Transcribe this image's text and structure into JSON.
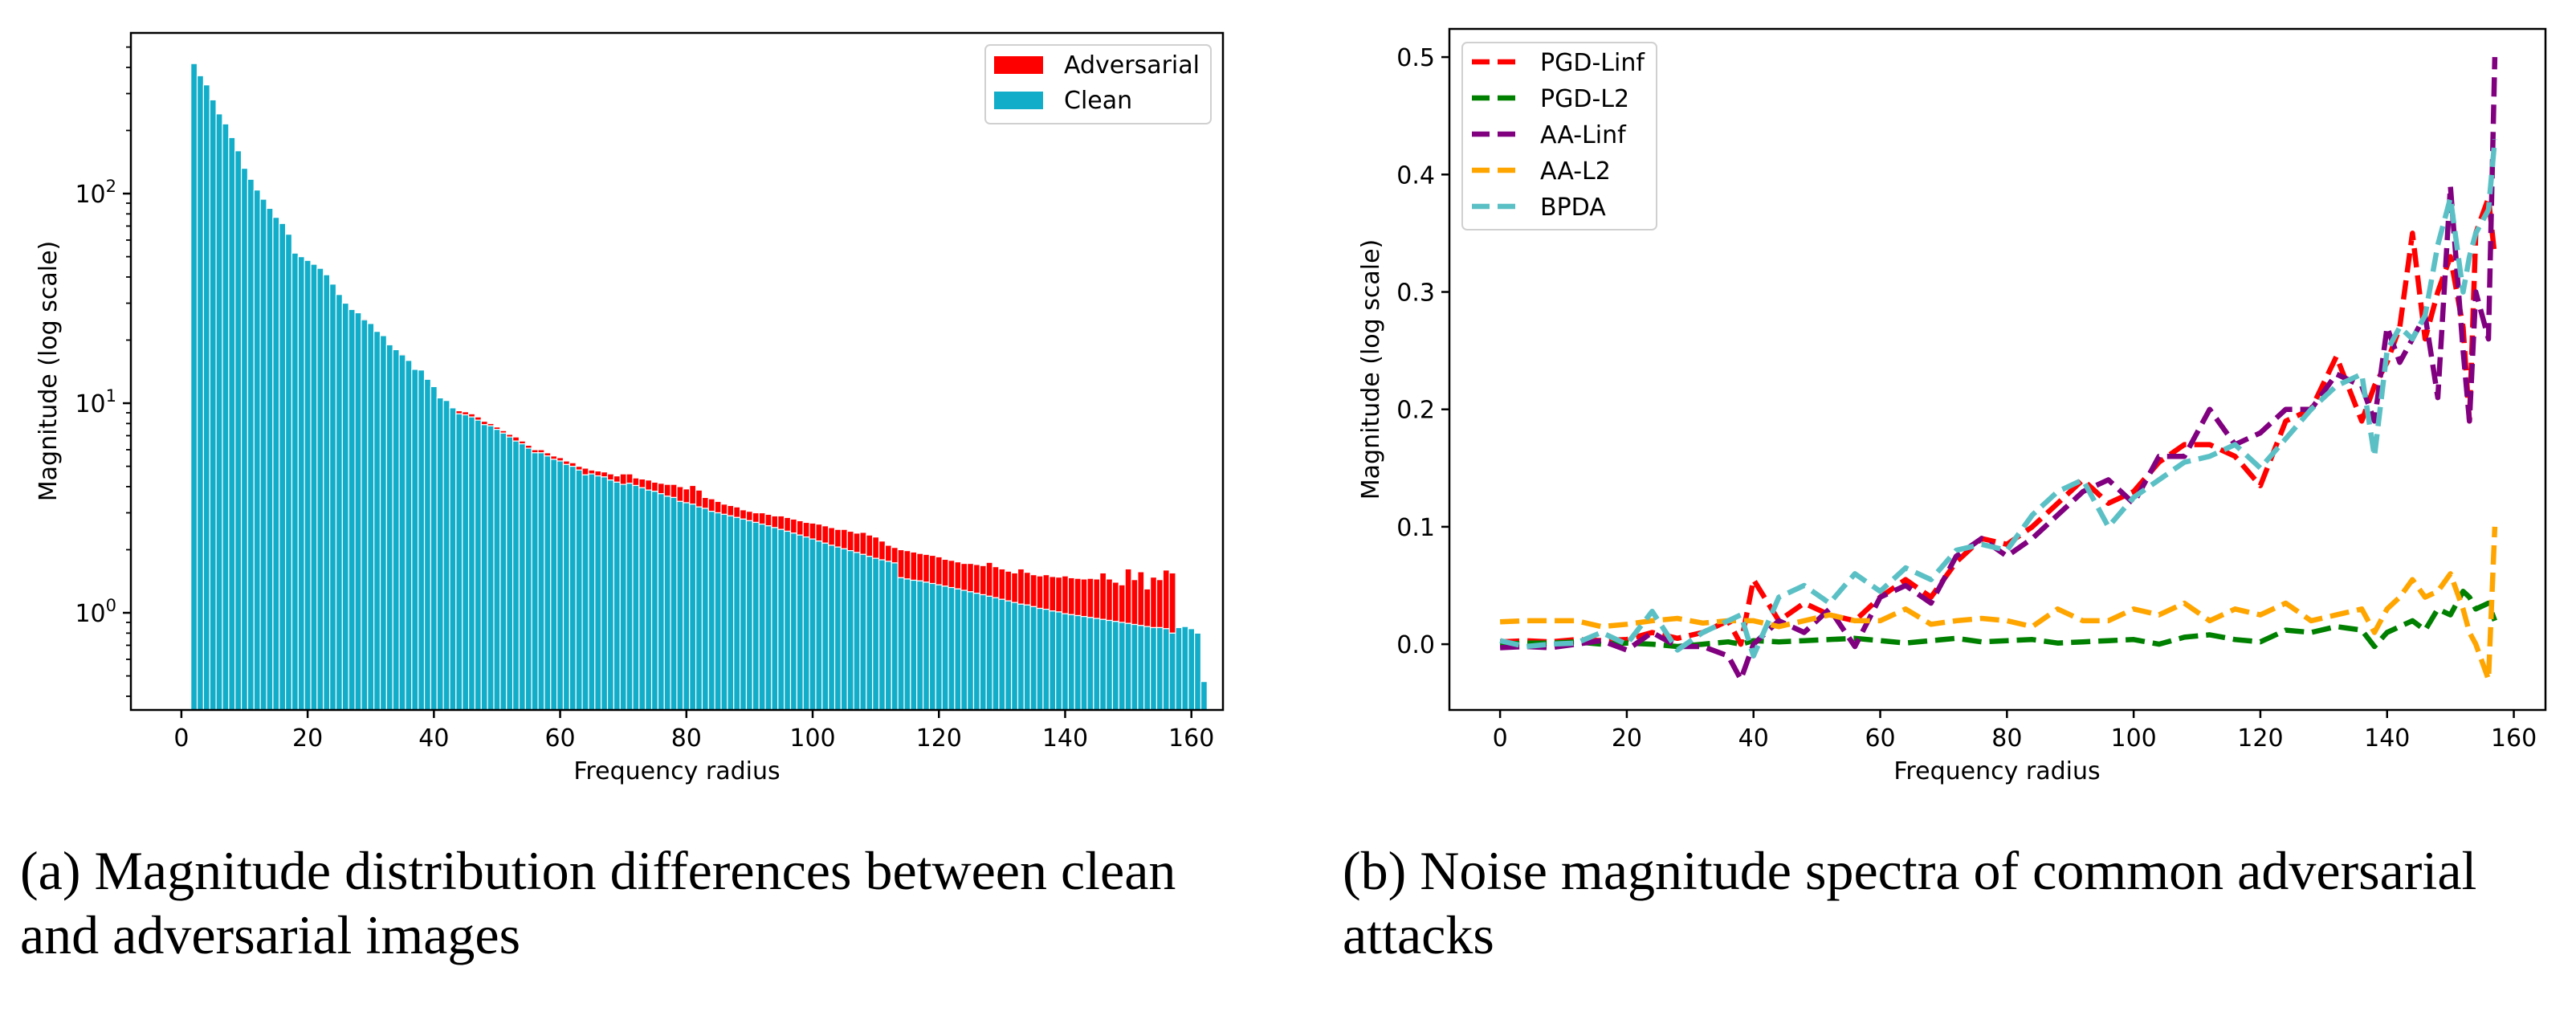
{
  "chart_data": [
    {
      "type": "bar",
      "stacked": true,
      "yscale": "log",
      "title": "",
      "xlabel": "Frequency radius",
      "ylabel": "Magnitude (log scale)",
      "xlim": [
        -8,
        165
      ],
      "ylim": [
        0.344,
        584
      ],
      "xticks": [
        0,
        20,
        40,
        60,
        80,
        100,
        120,
        140,
        160
      ],
      "yticks": [
        {
          "value": 1,
          "base": "10",
          "exp": "0"
        },
        {
          "value": 10,
          "base": "10",
          "exp": "1"
        },
        {
          "value": 100,
          "base": "10",
          "exp": "2"
        }
      ],
      "legend": {
        "placement": "top-right",
        "entries": [
          "Adversarial",
          "Clean"
        ]
      },
      "colors": {
        "Adversarial": "#ff0000",
        "Clean": "#12aec9"
      },
      "x_start": 2,
      "series": [
        {
          "name": "Clean",
          "values": [
            417,
            365,
            330,
            280,
            240,
            215,
            185,
            160,
            132,
            117,
            104,
            94,
            85,
            77,
            72,
            64,
            52,
            50,
            48,
            46,
            44,
            41,
            37,
            33,
            30,
            28,
            27,
            25,
            24,
            22,
            21,
            19,
            18,
            17,
            16,
            14.5,
            14.4,
            13,
            12,
            10.6,
            10.3,
            9.5,
            8.9,
            8.8,
            8.6,
            8.3,
            7.9,
            7.8,
            7.5,
            7.2,
            6.9,
            6.6,
            6.4,
            6.1,
            5.8,
            5.8,
            5.6,
            5.4,
            5.3,
            5.1,
            5.0,
            4.8,
            4.55,
            4.6,
            4.5,
            4.45,
            4.3,
            4.2,
            4.1,
            4.15,
            4.05,
            3.95,
            3.85,
            3.8,
            3.7,
            3.6,
            3.55,
            3.4,
            3.35,
            3.3,
            3.2,
            3.15,
            3.05,
            3.0,
            2.95,
            2.9,
            2.85,
            2.8,
            2.75,
            2.7,
            2.65,
            2.6,
            2.55,
            2.5,
            2.45,
            2.4,
            2.35,
            2.3,
            2.25,
            2.2,
            2.15,
            2.1,
            2.06,
            2.02,
            1.98,
            1.94,
            1.9,
            1.86,
            1.82,
            1.79,
            1.76,
            1.73,
            1.47,
            1.45,
            1.43,
            1.42,
            1.4,
            1.38,
            1.36,
            1.34,
            1.32,
            1.3,
            1.28,
            1.26,
            1.24,
            1.22,
            1.2,
            1.18,
            1.16,
            1.14,
            1.12,
            1.1,
            1.09,
            1.07,
            1.05,
            1.04,
            1.02,
            1.01,
            0.99,
            0.98,
            0.97,
            0.96,
            0.95,
            0.94,
            0.93,
            0.92,
            0.91,
            0.9,
            0.89,
            0.88,
            0.87,
            0.86,
            0.85,
            0.85,
            0.84,
            0.8,
            0.85,
            0.86,
            0.84,
            0.8,
            0.47
          ],
          "note": "estimated"
        },
        {
          "name": "Adversarial",
          "values": [
            417,
            365,
            330,
            280,
            240,
            215,
            185,
            160,
            132,
            117,
            104,
            94,
            85,
            77,
            72,
            64,
            52,
            50,
            48,
            46,
            44,
            41,
            37,
            33,
            30,
            28,
            27,
            25.3,
            24,
            22,
            21,
            19,
            18,
            17.2,
            16,
            14.5,
            14.4,
            13,
            12,
            10.7,
            10.4,
            9.6,
            9.2,
            9.1,
            8.9,
            8.6,
            8.2,
            8.0,
            7.7,
            7.4,
            7.1,
            6.9,
            6.6,
            6.3,
            6.0,
            6.0,
            5.8,
            5.6,
            5.5,
            5.3,
            5.2,
            5.0,
            4.9,
            4.8,
            4.75,
            4.7,
            4.6,
            4.5,
            4.6,
            4.6,
            4.4,
            4.35,
            4.3,
            4.2,
            4.15,
            4.1,
            4.1,
            4.0,
            3.9,
            4.05,
            3.85,
            3.55,
            3.5,
            3.4,
            3.3,
            3.25,
            3.2,
            3.1,
            3.05,
            3.0,
            3.0,
            2.95,
            2.9,
            2.9,
            2.85,
            2.8,
            2.75,
            2.7,
            2.68,
            2.65,
            2.6,
            2.55,
            2.5,
            2.5,
            2.45,
            2.4,
            2.42,
            2.35,
            2.3,
            2.2,
            2.1,
            2.05,
            2.0,
            1.98,
            1.95,
            1.92,
            1.9,
            1.88,
            1.85,
            1.8,
            1.78,
            1.75,
            1.72,
            1.72,
            1.7,
            1.68,
            1.74,
            1.66,
            1.62,
            1.58,
            1.55,
            1.62,
            1.56,
            1.52,
            1.5,
            1.52,
            1.49,
            1.48,
            1.5,
            1.47,
            1.46,
            1.45,
            1.46,
            1.45,
            1.55,
            1.45,
            1.4,
            1.36,
            1.62,
            1.44,
            1.57,
            1.3,
            1.48,
            1.44,
            1.6,
            1.55
          ],
          "note": "total stack height (clean + adversarial)"
        }
      ]
    },
    {
      "type": "line",
      "xlabel": "Frequency radius",
      "ylabel": "Magnitude (log scale)",
      "xlim": [
        -8,
        165
      ],
      "ylim": [
        -0.056,
        0.524
      ],
      "xticks": [
        0,
        20,
        40,
        60,
        80,
        100,
        120,
        140,
        160
      ],
      "yticks": [
        "0.0",
        "0.1",
        "0.2",
        "0.3",
        "0.4",
        "0.5"
      ],
      "legend": {
        "placement": "top-left"
      },
      "x": [
        0,
        4,
        8,
        12,
        16,
        20,
        24,
        28,
        32,
        36,
        38,
        40,
        44,
        48,
        52,
        56,
        60,
        64,
        68,
        72,
        76,
        80,
        84,
        88,
        92,
        96,
        100,
        104,
        108,
        112,
        116,
        120,
        124,
        128,
        132,
        136,
        138,
        140,
        142,
        144,
        146,
        148,
        150,
        152,
        153,
        154,
        156,
        157
      ],
      "series": [
        {
          "name": "PGD-Linf",
          "color": "#ff0000",
          "values": [
            0.002,
            0.003,
            0.002,
            0.004,
            0.003,
            0.004,
            0.01,
            0.005,
            0.01,
            0.02,
            0.0,
            0.055,
            0.02,
            0.035,
            0.025,
            0.02,
            0.04,
            0.055,
            0.04,
            0.07,
            0.09,
            0.085,
            0.1,
            0.12,
            0.14,
            0.12,
            0.13,
            0.155,
            0.17,
            0.17,
            0.16,
            0.135,
            0.19,
            0.2,
            0.245,
            0.19,
            0.22,
            0.24,
            0.27,
            0.35,
            0.26,
            0.3,
            0.33,
            0.27,
            0.19,
            0.35,
            0.38,
            0.33
          ]
        },
        {
          "name": "PGD-L2",
          "color": "#008000",
          "values": [
            0.0,
            0.001,
            0.001,
            0.002,
            0.0,
            0.001,
            0.0,
            -0.002,
            0.0,
            0.002,
            0.0,
            0.003,
            0.002,
            0.003,
            0.004,
            0.005,
            0.003,
            0.001,
            0.003,
            0.005,
            0.002,
            0.003,
            0.004,
            0.001,
            0.002,
            0.003,
            0.004,
            0.0,
            0.006,
            0.008,
            0.004,
            0.002,
            0.012,
            0.01,
            0.015,
            0.012,
            -0.002,
            0.01,
            0.015,
            0.02,
            0.012,
            0.03,
            0.025,
            0.045,
            0.04,
            0.03,
            0.035,
            0.02
          ]
        },
        {
          "name": "AA-Linf",
          "color": "#800080",
          "values": [
            -0.003,
            -0.002,
            -0.003,
            0.0,
            0.003,
            -0.005,
            0.01,
            -0.002,
            -0.002,
            -0.01,
            -0.03,
            0.0,
            0.02,
            0.01,
            0.03,
            -0.002,
            0.04,
            0.05,
            0.035,
            0.075,
            0.09,
            0.075,
            0.09,
            0.11,
            0.13,
            0.14,
            0.12,
            0.16,
            0.16,
            0.2,
            0.17,
            0.18,
            0.2,
            0.2,
            0.23,
            0.22,
            0.19,
            0.27,
            0.24,
            0.26,
            0.28,
            0.21,
            0.39,
            0.25,
            0.19,
            0.3,
            0.26,
            0.5
          ]
        },
        {
          "name": "AA-L2",
          "color": "#ffa500",
          "values": [
            0.019,
            0.02,
            0.02,
            0.02,
            0.015,
            0.017,
            0.02,
            0.022,
            0.018,
            0.02,
            0.02,
            0.02,
            0.015,
            0.02,
            0.025,
            0.02,
            0.02,
            0.03,
            0.017,
            0.02,
            0.022,
            0.02,
            0.015,
            0.03,
            0.02,
            0.02,
            0.03,
            0.025,
            0.035,
            0.02,
            0.03,
            0.025,
            0.035,
            0.02,
            0.025,
            0.03,
            0.01,
            0.03,
            0.04,
            0.055,
            0.04,
            0.045,
            0.06,
            0.03,
            0.01,
            0.0,
            -0.03,
            0.1
          ]
        },
        {
          "name": "BPDA",
          "color": "#5bc0c5",
          "values": [
            0.003,
            -0.002,
            0.0,
            0.001,
            0.01,
            0.0,
            0.028,
            -0.005,
            0.01,
            0.02,
            0.025,
            -0.01,
            0.04,
            0.05,
            0.035,
            0.06,
            0.045,
            0.065,
            0.055,
            0.08,
            0.085,
            0.08,
            0.11,
            0.13,
            0.14,
            0.1,
            0.125,
            0.14,
            0.155,
            0.16,
            0.17,
            0.15,
            0.175,
            0.2,
            0.22,
            0.23,
            0.16,
            0.25,
            0.27,
            0.26,
            0.28,
            0.34,
            0.38,
            0.3,
            0.33,
            0.35,
            0.37,
            0.43
          ]
        }
      ]
    }
  ],
  "captions": {
    "a_line1": "(a) Magnitude distribution differences between clean",
    "a_line2": "and adversarial images",
    "b_line1": "(b) Noise magnitude spectra of common adversarial",
    "b_line2": "attacks"
  },
  "legend_left": {
    "adversarial": "Adversarial",
    "clean": "Clean"
  }
}
